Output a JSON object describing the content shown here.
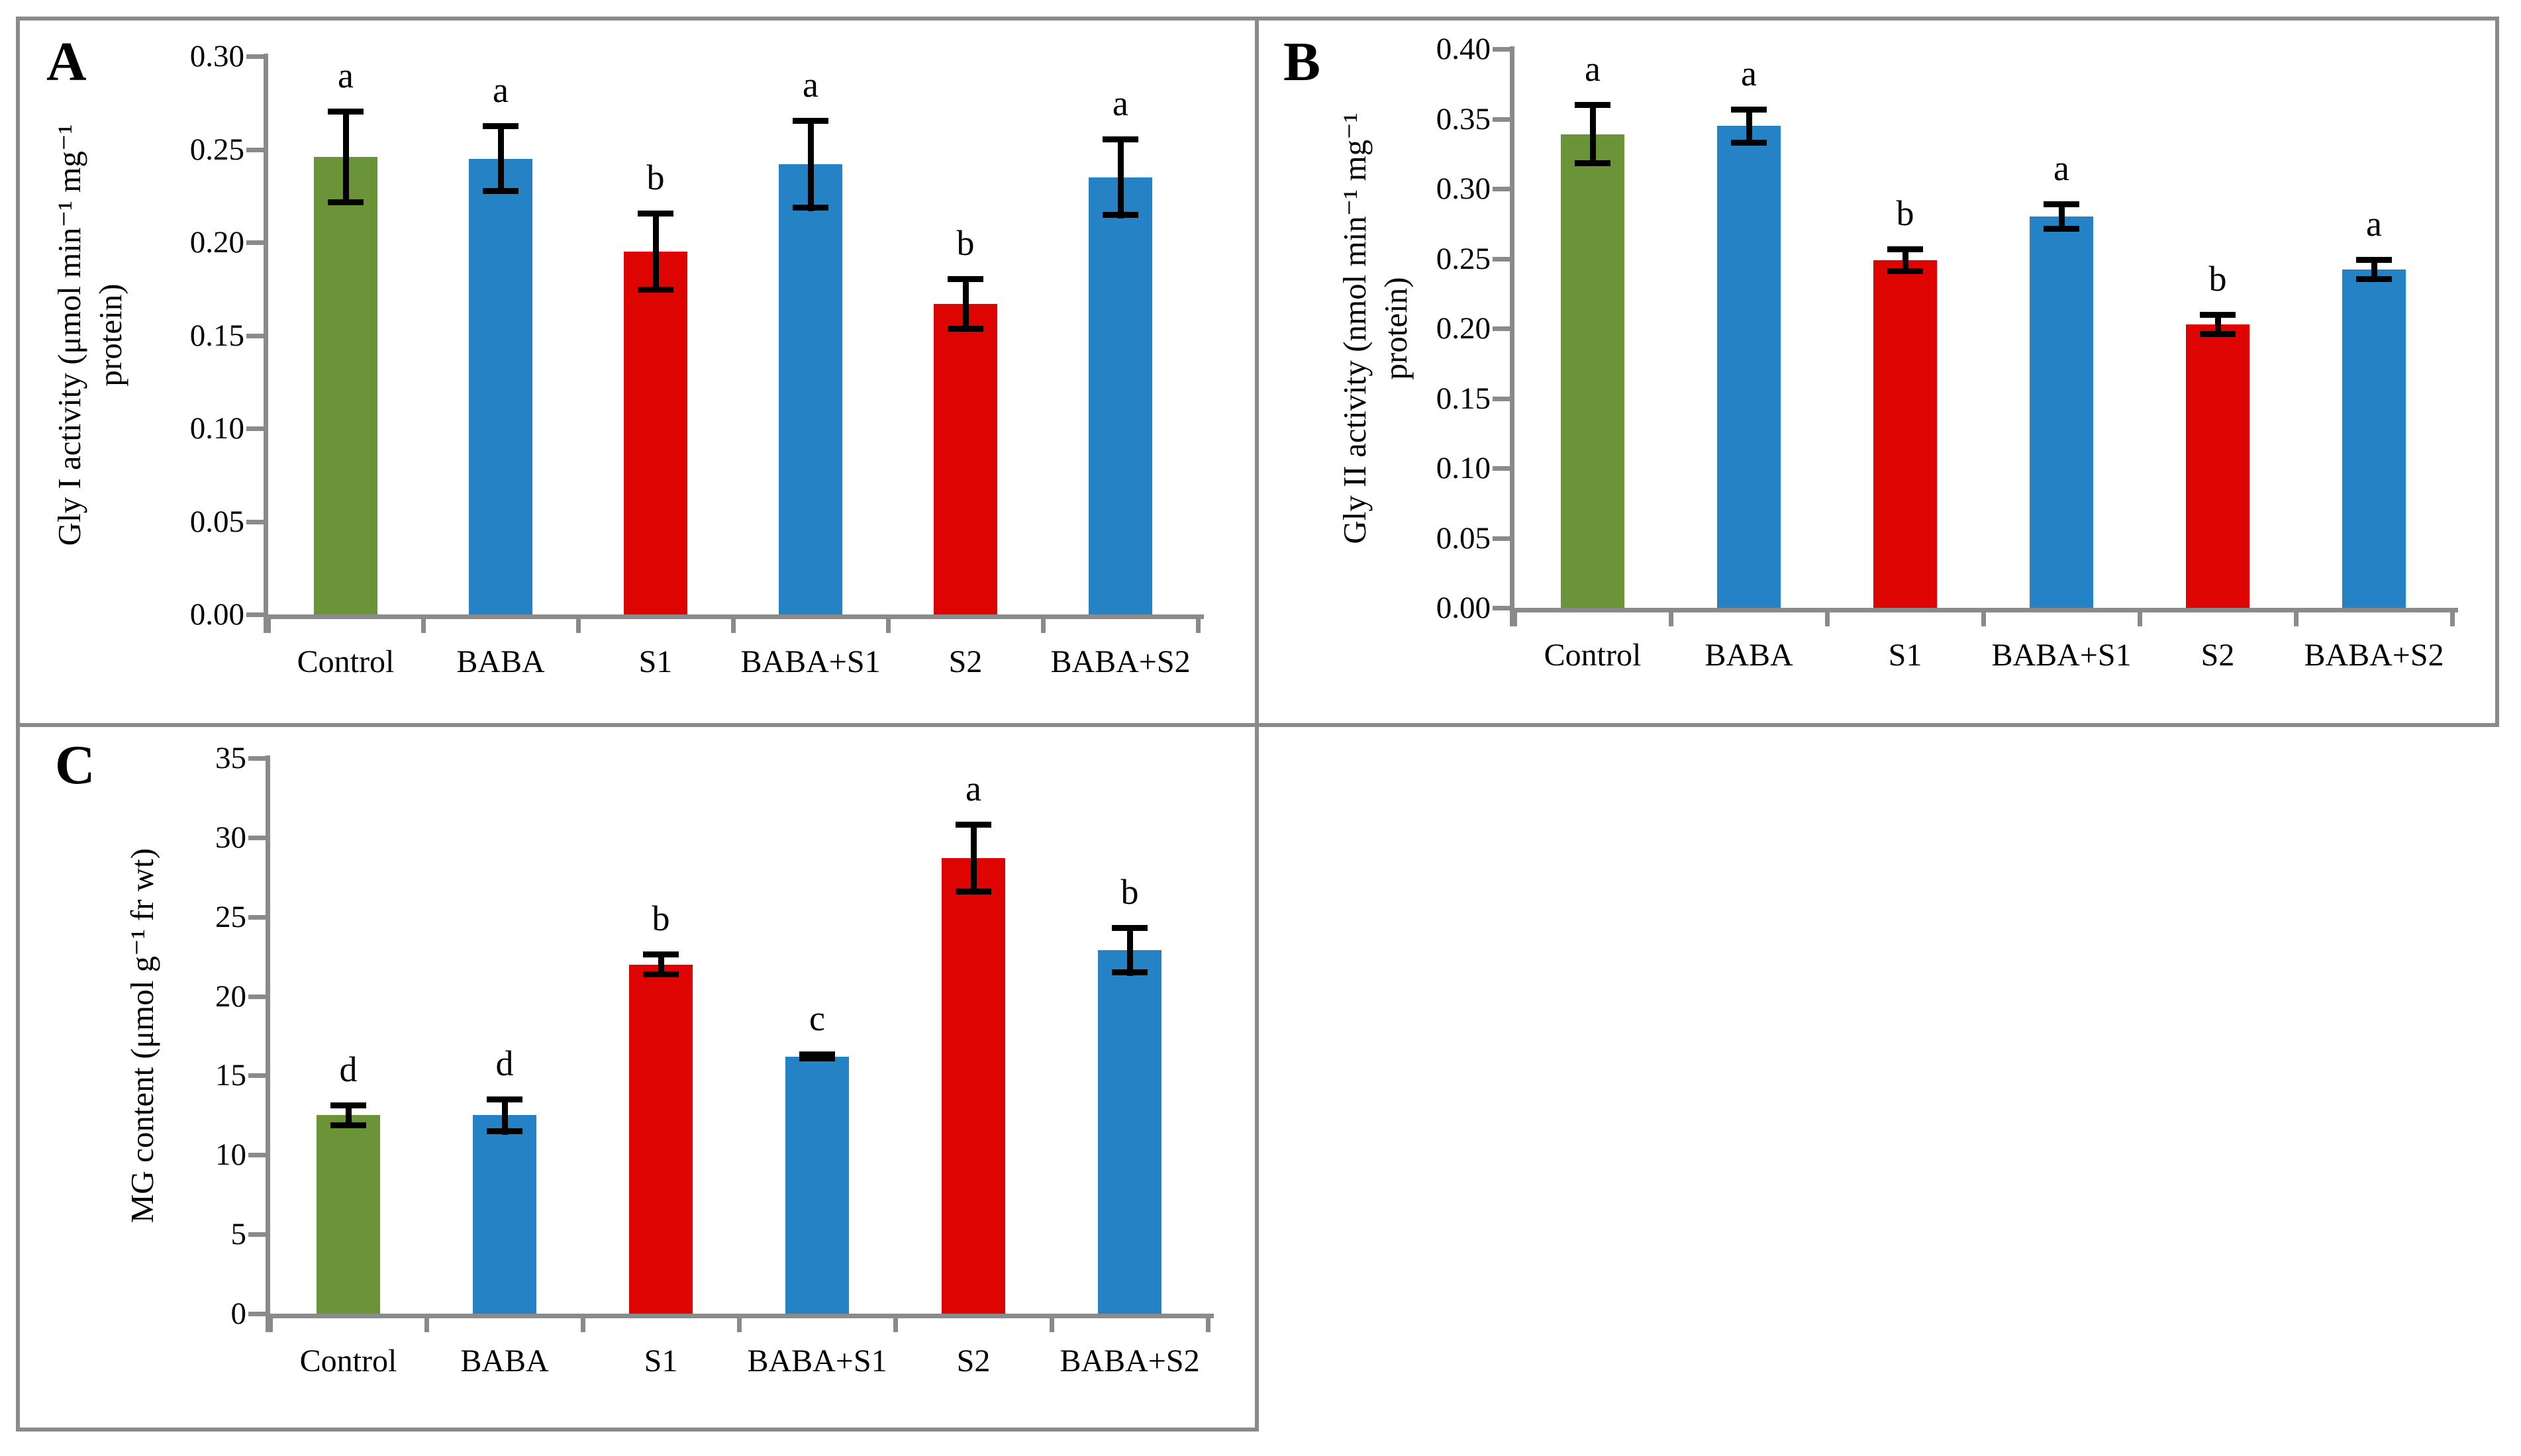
{
  "styles": {
    "bar_green": "#6A9437",
    "bar_blue": "#2582C4",
    "bar_red": "#DD0402",
    "axis_gray": "#8A8A8A",
    "border_gray": "#8A8A8A",
    "error_black": "#000000",
    "background": "#FFFFFF"
  },
  "categories": [
    "Control",
    "BABA",
    "S1",
    "BABA+S1",
    "S2",
    "BABA+S2"
  ],
  "chart_data": [
    {
      "type": "bar",
      "panel_letter": "A",
      "ylabel": "Gly I activity (μmol min⁻¹ mg⁻¹ protein)",
      "ylabel_lines": [
        "Gly I activity (μmol min⁻¹ mg⁻¹",
        "protein)"
      ],
      "xlabel": "",
      "categories": [
        "Control",
        "BABA",
        "S1",
        "BABA+S1",
        "S2",
        "BABA+S2"
      ],
      "values": [
        0.246,
        0.245,
        0.195,
        0.242,
        0.167,
        0.235
      ],
      "errors": [
        0.026,
        0.019,
        0.022,
        0.025,
        0.015,
        0.022
      ],
      "sig_letters": [
        "a",
        "a",
        "b",
        "a",
        "b",
        "a"
      ],
      "bar_colors": [
        "green",
        "blue",
        "red",
        "blue",
        "red",
        "blue"
      ],
      "ylim": [
        0,
        0.3
      ],
      "ytick_step": 0.05,
      "ytick_labels": [
        "0.30",
        "0.25",
        "0.20",
        "0.15",
        "0.10",
        "0.05",
        "0.00"
      ],
      "grid": false,
      "legend": false
    },
    {
      "type": "bar",
      "panel_letter": "B",
      "ylabel": "Gly II activity (nmol min⁻¹ mg⁻¹ protein)",
      "ylabel_lines": [
        "Gly II activity (nmol min⁻¹ mg⁻¹",
        "protein)"
      ],
      "xlabel": "",
      "categories": [
        "Control",
        "BABA",
        "S1",
        "BABA+S1",
        "S2",
        "BABA+S2"
      ],
      "values": [
        0.339,
        0.345,
        0.249,
        0.28,
        0.203,
        0.242
      ],
      "errors": [
        0.023,
        0.014,
        0.01,
        0.011,
        0.009,
        0.009
      ],
      "sig_letters": [
        "a",
        "a",
        "b",
        "a",
        "b",
        "a"
      ],
      "bar_colors": [
        "green",
        "blue",
        "red",
        "blue",
        "red",
        "blue"
      ],
      "ylim": [
        0,
        0.4
      ],
      "ytick_step": 0.05,
      "ytick_labels": [
        "0.40",
        "0.35",
        "0.30",
        "0.25",
        "0.20",
        "0.15",
        "0.10",
        "0.05",
        "0.00"
      ],
      "grid": false,
      "legend": false
    },
    {
      "type": "bar",
      "panel_letter": "C",
      "ylabel": "MG content (μmol g⁻¹ fr wt)",
      "ylabel_lines": [
        "MG content (μmol g⁻¹ fr wt)"
      ],
      "xlabel": "",
      "categories": [
        "Control",
        "BABA",
        "S1",
        "BABA+S1",
        "S2",
        "BABA+S2"
      ],
      "values": [
        12.5,
        12.5,
        22.0,
        16.2,
        28.7,
        22.9
      ],
      "errors": [
        0.8,
        1.2,
        0.8,
        0.3,
        2.3,
        1.6
      ],
      "sig_letters": [
        "d",
        "d",
        "b",
        "c",
        "a",
        "b"
      ],
      "bar_colors": [
        "green",
        "blue",
        "red",
        "blue",
        "red",
        "blue"
      ],
      "ylim": [
        0,
        35
      ],
      "ytick_step": 5,
      "ytick_labels": [
        "35",
        "30",
        "25",
        "20",
        "15",
        "10",
        "5",
        "0"
      ],
      "grid": false,
      "legend": false
    }
  ]
}
